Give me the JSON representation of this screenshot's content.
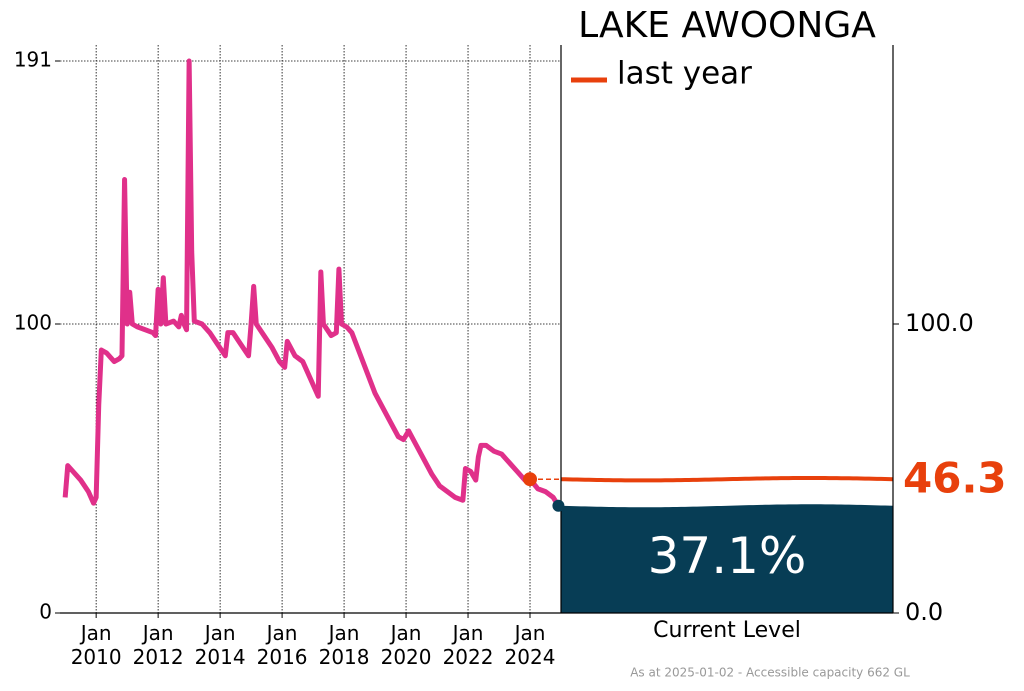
{
  "chart_data": {
    "type": "line",
    "title": "LAKE AWOONGA",
    "x": [
      "2009-01",
      "2009-02",
      "2009-04",
      "2009-07",
      "2009-10",
      "2009-12",
      "2010-01",
      "2010-02",
      "2010-03",
      "2010-05",
      "2010-08",
      "2010-10",
      "2010-11",
      "2010-12",
      "2011-01",
      "2011-02",
      "2011-03",
      "2011-05",
      "2011-08",
      "2011-11",
      "2011-12",
      "2012-01",
      "2012-02",
      "2012-03",
      "2012-04",
      "2012-07",
      "2012-09",
      "2012-10",
      "2012-11",
      "2012-12",
      "2013-01",
      "2013-02",
      "2013-03",
      "2013-06",
      "2013-09",
      "2013-12",
      "2014-03",
      "2014-04",
      "2014-06",
      "2014-09",
      "2014-12",
      "2015-01",
      "2015-02",
      "2015-03",
      "2015-06",
      "2015-09",
      "2015-12",
      "2016-02",
      "2016-03",
      "2016-06",
      "2016-09",
      "2016-12",
      "2017-03",
      "2017-04",
      "2017-05",
      "2017-08",
      "2017-10",
      "2017-11",
      "2017-12",
      "2018-02",
      "2018-04",
      "2018-07",
      "2018-10",
      "2019-01",
      "2019-04",
      "2019-07",
      "2019-10",
      "2019-12",
      "2020-02",
      "2020-05",
      "2020-08",
      "2020-11",
      "2021-02",
      "2021-05",
      "2021-08",
      "2021-11",
      "2021-12",
      "2022-02",
      "2022-04",
      "2022-05",
      "2022-06",
      "2022-08",
      "2022-11",
      "2023-02",
      "2023-05",
      "2023-08",
      "2023-11",
      "2024-01",
      "2024-04",
      "2024-07",
      "2024-10",
      "2024-12"
    ],
    "series": [
      {
        "color": "#e0308a",
        "values": [
          40,
          51,
          49,
          46,
          42,
          38,
          40,
          72,
          91,
          90,
          87,
          88,
          89,
          150,
          100,
          111,
          100,
          99,
          98,
          97,
          96,
          112,
          100,
          116,
          100,
          101,
          99,
          103,
          100,
          98,
          191,
          125,
          101,
          100,
          97,
          93,
          89,
          97,
          97,
          93,
          89,
          100,
          113,
          100,
          96,
          92,
          87,
          85,
          94,
          89,
          87,
          81,
          75,
          118,
          100,
          96,
          97,
          119,
          100,
          99,
          97,
          90,
          83,
          76,
          71,
          66,
          61,
          60,
          63,
          58,
          53,
          48,
          44,
          42,
          40,
          39,
          50,
          49,
          46,
          54,
          58,
          58,
          56,
          55,
          52,
          49,
          46,
          46.3,
          43,
          42,
          40,
          37.1
        ]
      }
    ],
    "xlim": [
      "2008-11",
      "2025-01"
    ],
    "xticks": [
      {
        "value": "2010-01",
        "label": "Jan\n2010"
      },
      {
        "value": "2012-01",
        "label": "Jan\n2012"
      },
      {
        "value": "2014-01",
        "label": "Jan\n2014"
      },
      {
        "value": "2016-01",
        "label": "Jan\n2016"
      },
      {
        "value": "2018-01",
        "label": "Jan\n2018"
      },
      {
        "value": "2020-01",
        "label": "Jan\n2020"
      },
      {
        "value": "2022-01",
        "label": "Jan\n2022"
      },
      {
        "value": "2024-01",
        "label": "Jan\n2024"
      }
    ],
    "ylim": [
      0,
      191
    ],
    "yticks": [
      0,
      100,
      191
    ],
    "y2lim": [
      0,
      191
    ],
    "y2ticks": [
      {
        "value": 0,
        "label": "0.0"
      },
      {
        "value": 100,
        "label": "100.0"
      }
    ],
    "grid": true,
    "last_year": {
      "label": "last year",
      "value": 46.3,
      "color": "#e8400c"
    },
    "current": {
      "label": "Current Level",
      "value": 37.1,
      "value_label": "37.1%",
      "color": "#073d55"
    },
    "footnote": "As at 2025-01-02 - Accessible capacity 662 GL"
  }
}
